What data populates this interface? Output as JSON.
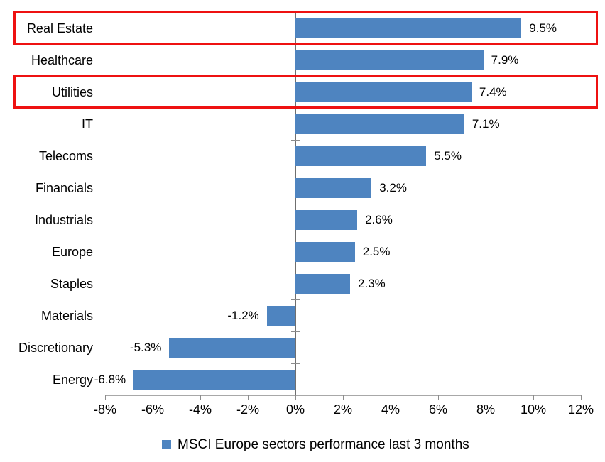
{
  "chart_data": {
    "type": "bar",
    "orientation": "horizontal",
    "title": "",
    "categories": [
      "Real Estate",
      "Healthcare",
      "Utilities",
      "IT",
      "Telecoms",
      "Financials",
      "Industrials",
      "Europe",
      "Staples",
      "Materials",
      "Discretionary",
      "Energy"
    ],
    "values": [
      9.5,
      7.9,
      7.4,
      7.1,
      5.5,
      3.2,
      2.6,
      2.5,
      2.3,
      -1.2,
      -5.3,
      -6.8
    ],
    "value_labels": [
      "9.5%",
      "7.9%",
      "7.4%",
      "7.1%",
      "5.5%",
      "3.2%",
      "2.6%",
      "2.5%",
      "2.3%",
      "-1.2%",
      "-5.3%",
      "-6.8%"
    ],
    "x_tick_values": [
      -8,
      -6,
      -4,
      -2,
      0,
      2,
      4,
      6,
      8,
      10,
      12
    ],
    "x_tick_labels": [
      "-8%",
      "-6%",
      "-4%",
      "-2%",
      "0%",
      "2%",
      "4%",
      "6%",
      "8%",
      "10%",
      "12%"
    ],
    "xlim": [
      -8,
      12
    ],
    "grid": false,
    "legend_position": "bottom",
    "legend": "MSCI Europe sectors performance last 3 months",
    "bar_color": "#4e84c0",
    "highlight_color": "#ee1111",
    "highlighted_categories": [
      "Real Estate",
      "Utilities"
    ]
  }
}
